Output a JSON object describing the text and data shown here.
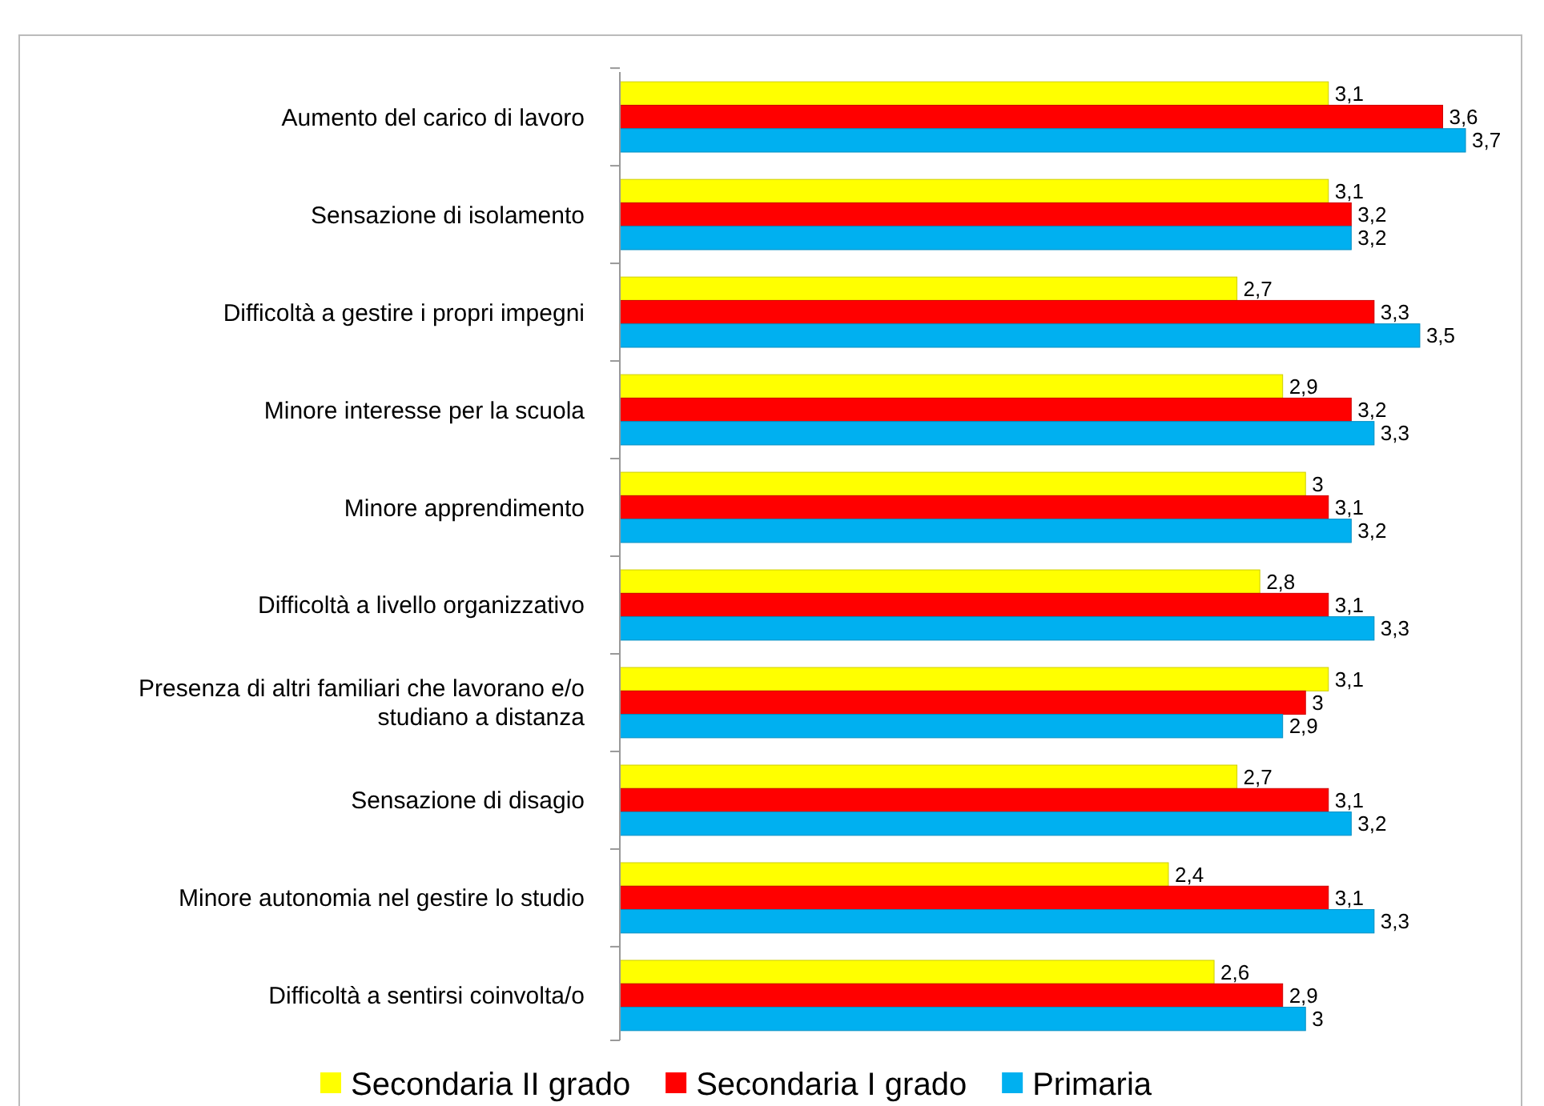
{
  "chart_data": {
    "type": "bar",
    "orientation": "horizontal",
    "legend": "bottom",
    "categories": [
      "Aumento del carico di lavoro",
      "Sensazione di isolamento",
      "Difficoltà a gestire i propri impegni",
      "Minore interesse per la scuola",
      "Minore apprendimento",
      "Difficoltà a livello organizzativo",
      "Presenza di altri familiari che lavorano e/o studiano a distanza",
      "Sensazione di disagio",
      "Minore autonomia nel gestire lo studio",
      "Difficoltà a sentirsi coinvolta/o"
    ],
    "series": [
      {
        "name": "Secondaria II grado",
        "color": "#ffff00",
        "values": [
          3.1,
          3.1,
          2.7,
          2.9,
          3,
          2.8,
          3.1,
          2.7,
          2.4,
          2.6
        ],
        "value_labels": [
          "3,1",
          "3,1",
          "2,7",
          "2,9",
          "3",
          "2,8",
          "3,1",
          "2,7",
          "2,4",
          "2,6"
        ]
      },
      {
        "name": "Secondaria I grado",
        "color": "#ff0000",
        "values": [
          3.6,
          3.2,
          3.3,
          3.2,
          3.1,
          3.1,
          3,
          3.1,
          3.1,
          2.9
        ],
        "value_labels": [
          "3,6",
          "3,2",
          "3,3",
          "3,2",
          "3,1",
          "3,1",
          "3",
          "3,1",
          "3,1",
          "2,9"
        ]
      },
      {
        "name": "Primaria",
        "color": "#00b0f0",
        "values": [
          3.7,
          3.2,
          3.5,
          3.3,
          3.2,
          3.3,
          2.9,
          3.2,
          3.3,
          3
        ],
        "value_labels": [
          "3,7",
          "3,2",
          "3,5",
          "3,3",
          "3,2",
          "3,3",
          "2,9",
          "3,2",
          "3,3",
          "3"
        ]
      }
    ]
  }
}
